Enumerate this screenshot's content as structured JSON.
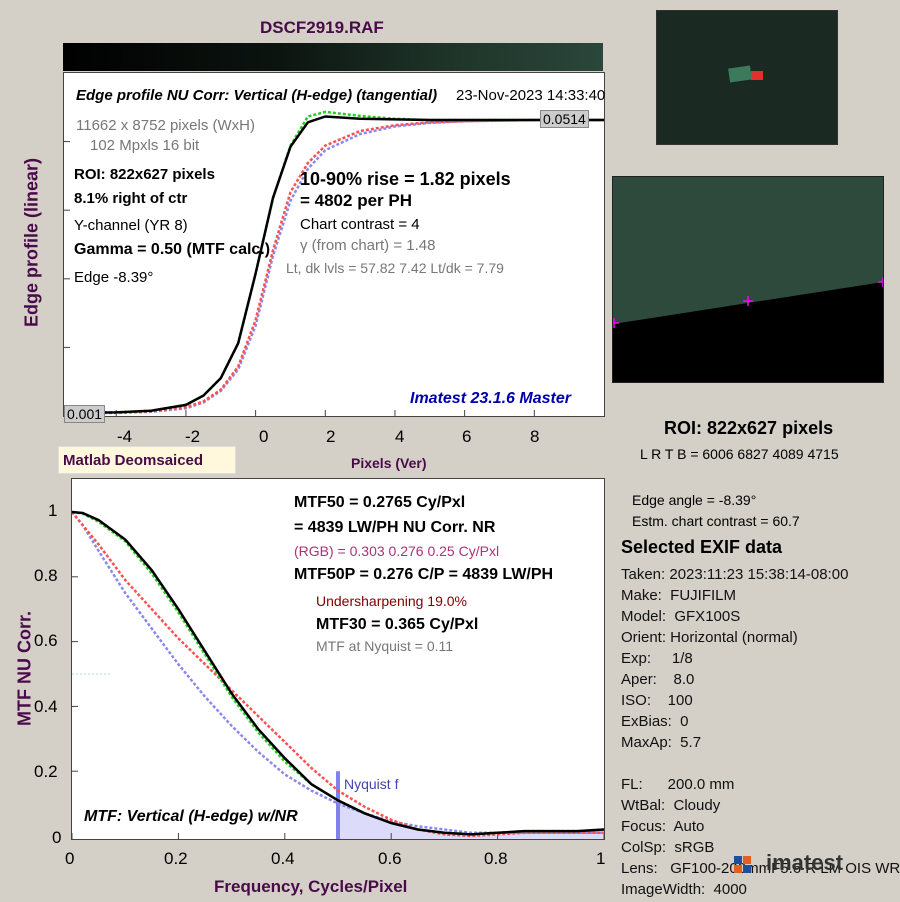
{
  "file_title": "DSCF2919.RAF",
  "colors": {
    "measured": "#000000",
    "green_channel": "#22cc22",
    "red_channel": "#ff5050",
    "blue_channel": "#8888ee",
    "nyquist": "#8080ee",
    "title": "#4a0a4a",
    "imatest_label": "#0000aa",
    "undersharpening": "#800000",
    "rgb_text": "#aa3377",
    "thumb_bg": "#1a2a22",
    "roi_face": "#2d4a3c",
    "marker": "#ff00ff"
  },
  "edge_panel": {
    "heading": "Edge profile  NU Corr: Vertical (H-edge) (tangential)",
    "date": "23-Nov-2023 14:33:40",
    "dims": "11662 x 8752 pixels (WxH)",
    "mpxls": "102 Mpxls   16 bit",
    "roi": "ROI:  822x627 pixels",
    "offset": "8.1% right of ctr",
    "channel": "Y-channel  (YR 8)",
    "gamma": "Gamma = 0.50 (MTF calc.)",
    "edge": "Edge  -8.39°",
    "rise": "10-90% rise = 1.82 pixels",
    "per_ph": "=   4802 per PH",
    "contrast": "Chart contrast = 4",
    "gamma_chart": "γ (from chart) =  1.48",
    "levels": "Lt, dk lvls = 57.82  7.42  Lt/dk = 7.79",
    "imatest": "Imatest 23.1.6 Master",
    "top_value": "0.0514",
    "bottom_value": "0.001",
    "ylabel": "Edge profile (linear)",
    "xlabel": "Pixels (Ver)",
    "matlab_label": "Matlab Deomsaiced",
    "xticks": [
      "-4",
      "-2",
      "0",
      "2",
      "4",
      "6",
      "8"
    ]
  },
  "mtf_panel": {
    "mtf50": "MTF50 = 0.2765 Cy/Pxl",
    "lwph": "= 4839 LW/PH  NU Corr.  NR",
    "rgb": "(RGB) = 0.303  0.276  0.25 Cy/Pxl",
    "mtf50p": "MTF50P = 0.276 C/P = 4839 LW/PH",
    "undersharp": "Undersharpening 19.0%",
    "mtf30": "MTF30 = 0.365 Cy/Pxl",
    "nyq_text": "MTF at Nyquist = 0.11",
    "nyquist_label": "Nyquist f",
    "footer": "MTF: Vertical (H-edge) w/NR",
    "ylabel": "MTF  NU Corr.",
    "xlabel": "Frequency, Cycles/Pixel",
    "yticks": [
      "1",
      "0.8",
      "0.6",
      "0.4",
      "0.2",
      "0"
    ],
    "xticks": [
      "0",
      "0.2",
      "0.4",
      "0.6",
      "0.8",
      "1"
    ]
  },
  "roi_panel": {
    "roi": "ROI:  822x627 pixels",
    "lrtb": "L R  T B = 6006 6827  4089 4715",
    "edge_angle": "Edge angle = -8.39°",
    "contrast": "Estm. chart contrast = 60.7"
  },
  "exif": {
    "heading": "Selected EXIF data",
    "lines": [
      "Taken: 2023:11:23 15:38:14-08:00",
      "Make:  FUJIFILM",
      "Model:  GFX100S",
      "Orient: Horizontal (normal)",
      "Exp:     1/8",
      "Aper:    8.0",
      "ISO:    100",
      "ExBias:  0",
      "MaxAp:  5.7",
      "",
      "FL:      200.0 mm",
      "WtBal:  Cloudy",
      "Focus:  Auto",
      "ColSp:  sRGB",
      "Lens:   GF100-200mmF5.6 R LM OIS WR",
      "ImageWidth:  4000"
    ]
  },
  "logo": "imatest",
  "chart_data": [
    {
      "type": "line",
      "title": "Edge profile  NU Corr: Vertical (H-edge) (tangential)",
      "xlabel": "Pixels (Ver)",
      "ylabel": "Edge profile (linear)",
      "xlim": [
        -5.5,
        10
      ],
      "ylim": [
        0.001,
        0.0514
      ],
      "series": [
        {
          "x": [
            -5.5,
            -4,
            -3,
            -2,
            -1.5,
            -1,
            -0.5,
            0,
            0.5,
            1,
            1.5,
            2,
            3,
            4,
            5,
            6,
            7,
            8,
            10
          ],
          "y": [
            0.001,
            0.0011,
            0.0014,
            0.0024,
            0.004,
            0.007,
            0.013,
            0.025,
            0.038,
            0.047,
            0.052,
            0.0528,
            0.0521,
            0.0516,
            0.0514,
            0.0514,
            0.0514,
            0.0514,
            0.0514
          ]
        },
        {
          "x": [
            -5.5,
            -4,
            -3,
            -2,
            -1.5,
            -1,
            -0.5,
            0,
            0.5,
            1,
            1.5,
            2,
            3,
            4,
            5,
            6,
            7,
            8,
            10
          ],
          "y": [
            0.001,
            0.0011,
            0.0014,
            0.0024,
            0.004,
            0.007,
            0.013,
            0.025,
            0.038,
            0.0468,
            0.051,
            0.052,
            0.0516,
            0.0515,
            0.0514,
            0.0514,
            0.0514,
            0.0514,
            0.0514
          ]
        },
        {
          "x": [
            -5.5,
            -4,
            -3,
            -2,
            -1.5,
            -1,
            -0.5,
            0,
            0.5,
            1,
            1.5,
            2,
            3,
            4,
            5,
            6,
            7,
            8,
            10
          ],
          "y": [
            0.001,
            0.0011,
            0.0013,
            0.002,
            0.003,
            0.005,
            0.009,
            0.017,
            0.029,
            0.039,
            0.044,
            0.047,
            0.0495,
            0.0505,
            0.051,
            0.0512,
            0.0513,
            0.0514,
            0.0514
          ]
        },
        {
          "x": [
            -5.5,
            -4,
            -3,
            -2,
            -1.5,
            -1,
            -0.5,
            0,
            0.5,
            1,
            1.5,
            2,
            3,
            4,
            5,
            6,
            7,
            8,
            10
          ],
          "y": [
            0.001,
            0.001,
            0.0012,
            0.0018,
            0.0028,
            0.0048,
            0.0085,
            0.016,
            0.028,
            0.0375,
            0.043,
            0.0462,
            0.049,
            0.0503,
            0.0509,
            0.0512,
            0.0513,
            0.0514,
            0.0514
          ]
        }
      ]
    },
    {
      "type": "line",
      "title": "MTF: Vertical (H-edge) w/NR",
      "xlabel": "Frequency, Cycles/Pixel",
      "ylabel": "MTF  NU Corr.",
      "xlim": [
        0,
        1
      ],
      "ylim": [
        0,
        1.05
      ],
      "series": [
        {
          "x": [
            0,
            0.02,
            0.05,
            0.1,
            0.15,
            0.2,
            0.25,
            0.3,
            0.35,
            0.4,
            0.45,
            0.5,
            0.55,
            0.6,
            0.65,
            0.7,
            0.75,
            0.8,
            0.85,
            0.9,
            0.95,
            1.0
          ],
          "y": [
            1.0,
            0.995,
            0.97,
            0.91,
            0.81,
            0.69,
            0.56,
            0.43,
            0.32,
            0.23,
            0.16,
            0.11,
            0.07,
            0.04,
            0.02,
            0.01,
            0.005,
            0.01,
            0.015,
            0.015,
            0.015,
            0.02
          ]
        },
        {
          "x": [
            0,
            0.02,
            0.05,
            0.1,
            0.15,
            0.2,
            0.25,
            0.3,
            0.35,
            0.4,
            0.45,
            0.5,
            0.55,
            0.6,
            0.65,
            0.7,
            0.75,
            0.8,
            0.85,
            0.9,
            0.95,
            1.0
          ],
          "y": [
            1.0,
            0.997,
            0.975,
            0.915,
            0.82,
            0.7,
            0.57,
            0.44,
            0.33,
            0.24,
            0.16,
            0.11,
            0.07,
            0.04,
            0.02,
            0.01,
            0.005,
            0.01,
            0.015,
            0.015,
            0.015,
            0.02
          ]
        },
        {
          "x": [
            0,
            0.02,
            0.05,
            0.1,
            0.15,
            0.2,
            0.25,
            0.3,
            0.35,
            0.4,
            0.45,
            0.5,
            0.55,
            0.6,
            0.65,
            0.7,
            0.75,
            0.8,
            0.85,
            0.9,
            0.95,
            1.0
          ],
          "y": [
            1.0,
            0.96,
            0.9,
            0.79,
            0.7,
            0.61,
            0.53,
            0.45,
            0.37,
            0.29,
            0.21,
            0.14,
            0.09,
            0.05,
            0.02,
            0.005,
            0.0,
            0.005,
            0.01,
            0.01,
            0.01,
            0.01
          ]
        },
        {
          "x": [
            0,
            0.02,
            0.05,
            0.1,
            0.15,
            0.2,
            0.25,
            0.3,
            0.35,
            0.4,
            0.45,
            0.5,
            0.55,
            0.6,
            0.65,
            0.7,
            0.75,
            0.8,
            0.85,
            0.9,
            0.95,
            1.0
          ],
          "y": [
            1.0,
            0.96,
            0.88,
            0.75,
            0.64,
            0.53,
            0.43,
            0.34,
            0.26,
            0.19,
            0.14,
            0.1,
            0.07,
            0.045,
            0.03,
            0.02,
            0.01,
            0.01,
            0.01,
            0.01,
            0.01,
            0.01
          ]
        }
      ],
      "nyquist_x": 0.5
    }
  ]
}
